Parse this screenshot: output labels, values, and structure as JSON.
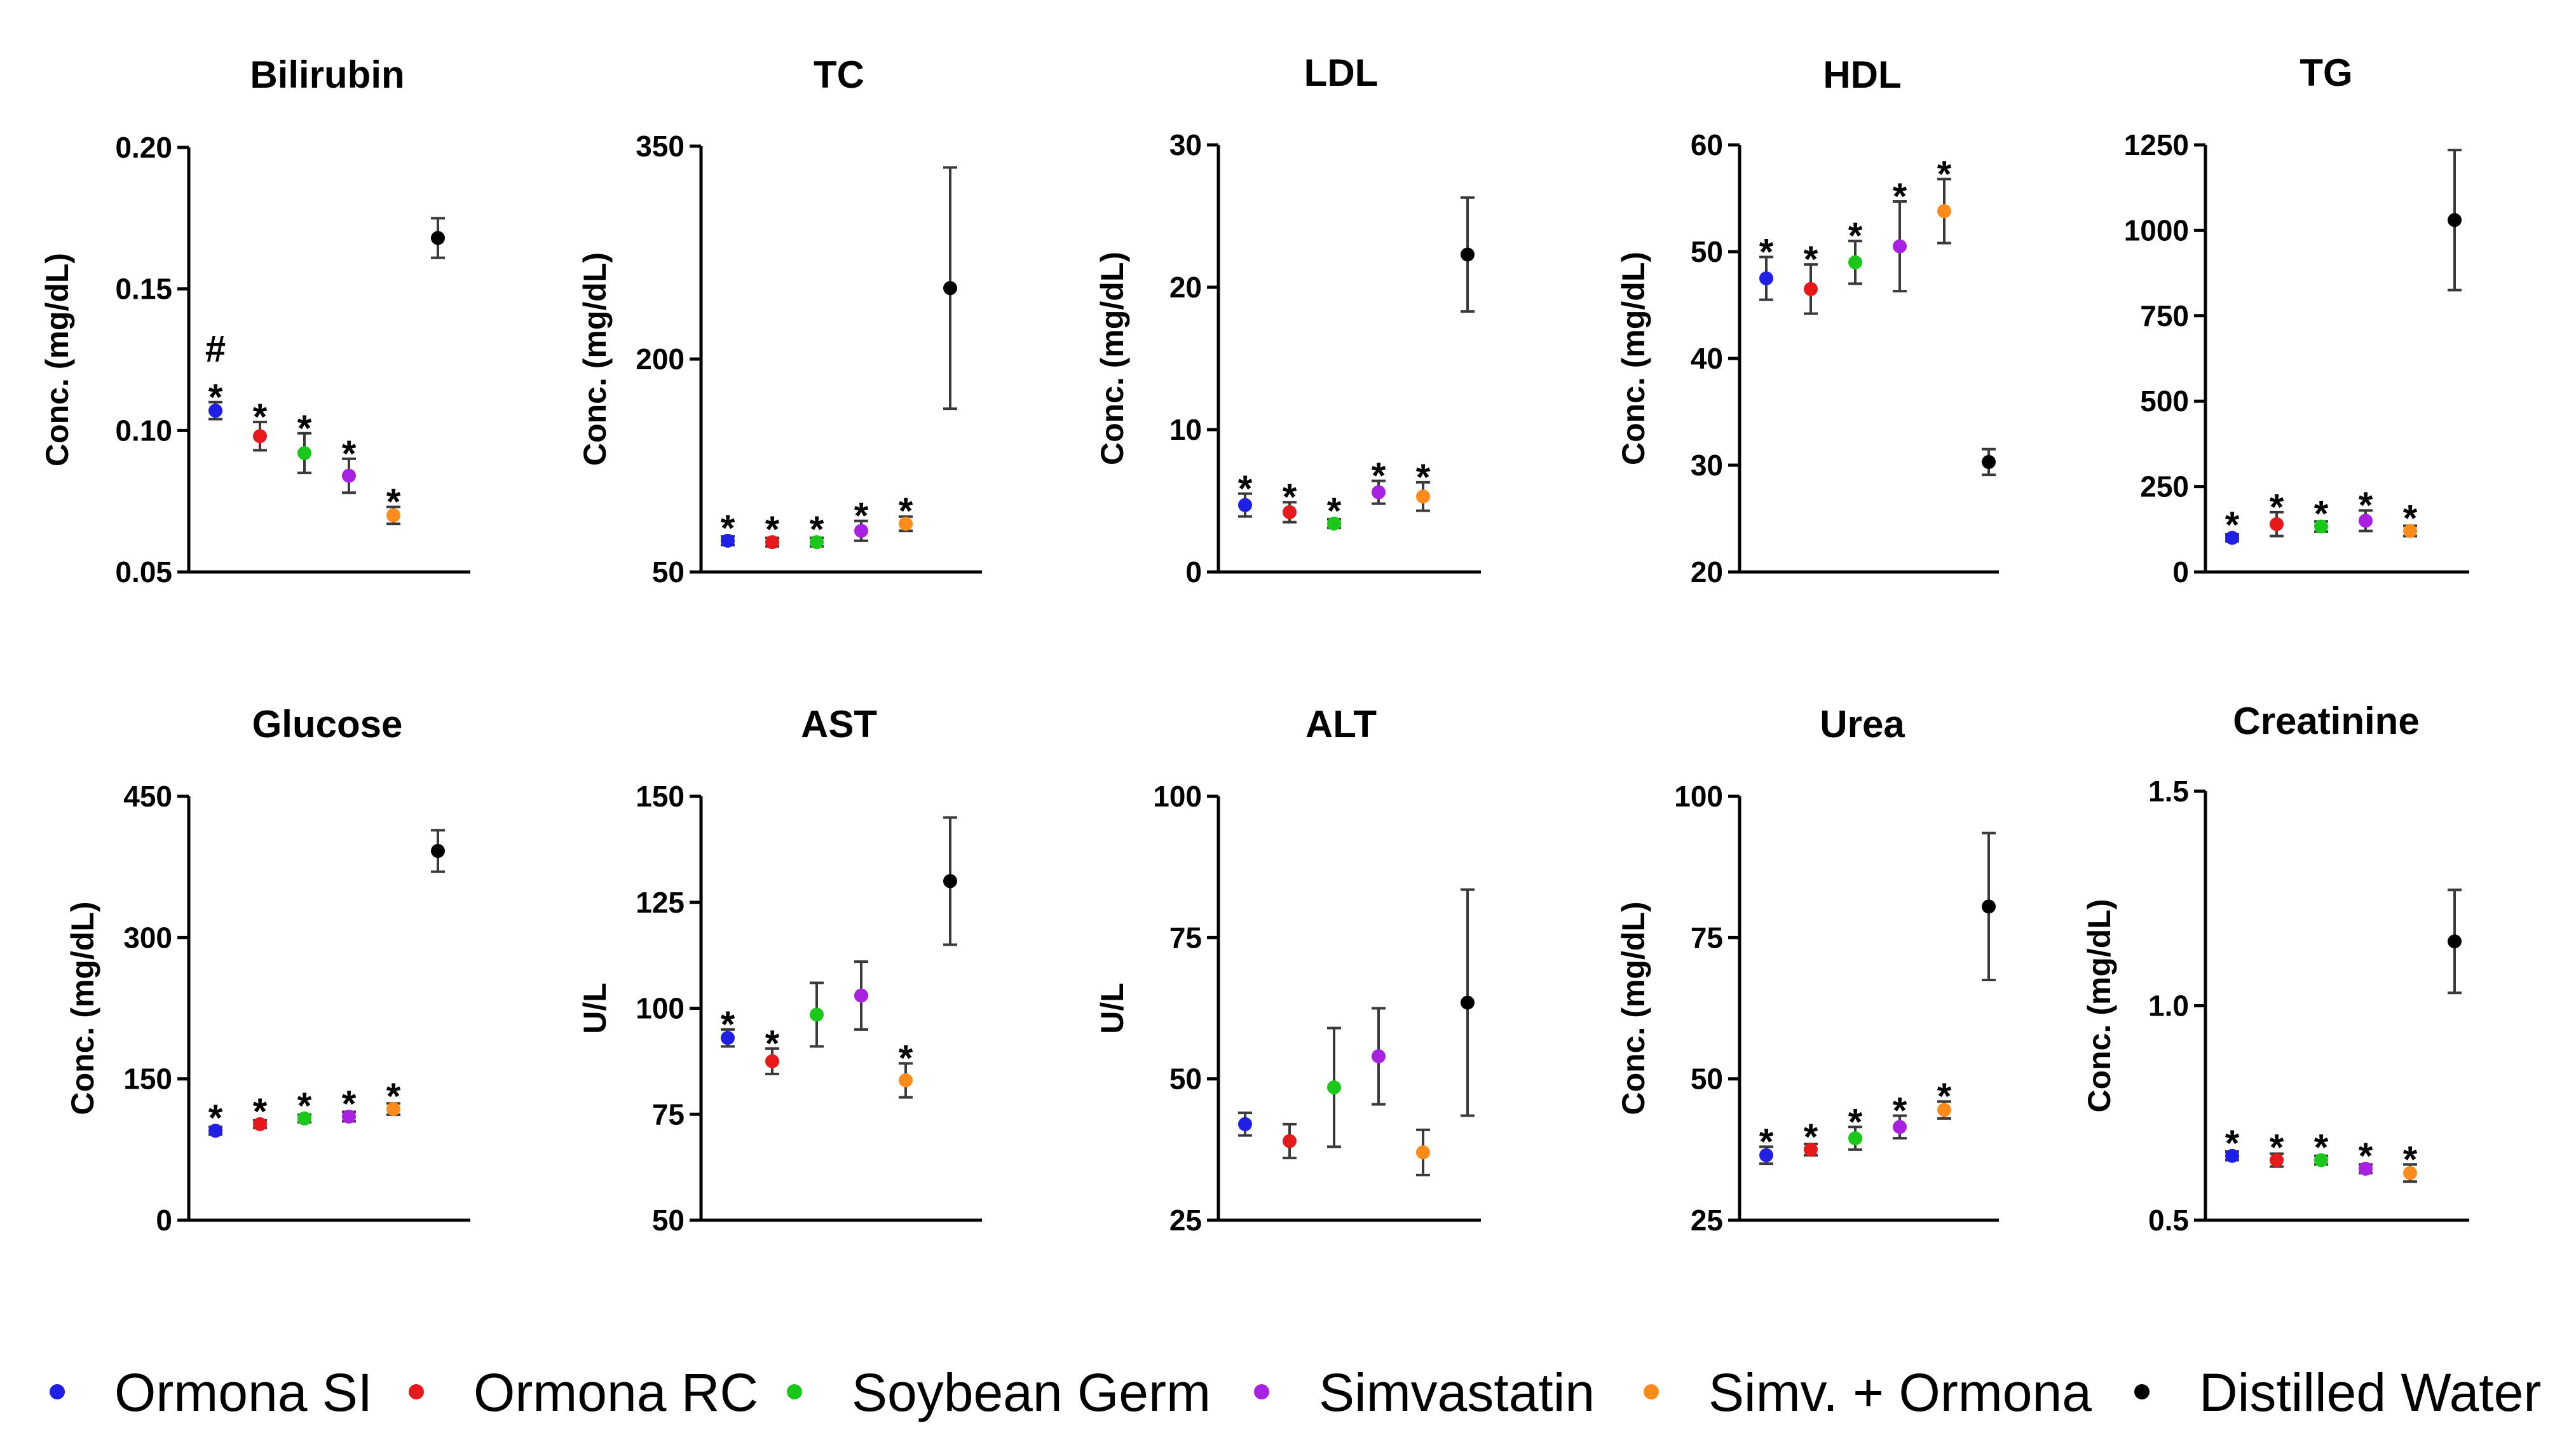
{
  "chart_data": [
    {
      "type": "scatter",
      "title": "Bilirubin",
      "ylabel": "Conc. (mg/dL)",
      "ylim": [
        0.05,
        0.2
      ],
      "ticks": [
        "0.05",
        "0.10",
        "0.15",
        "0.20"
      ],
      "tick_values": [
        0.05,
        0.1,
        0.15,
        0.2
      ],
      "points": [
        {
          "group": "Ormona SI",
          "value": 0.107,
          "error": 0.003,
          "marks": [
            "*",
            "#"
          ]
        },
        {
          "group": "Ormona RC",
          "value": 0.098,
          "error": 0.005,
          "marks": [
            "*"
          ]
        },
        {
          "group": "Soybean Germ",
          "value": 0.092,
          "error": 0.007,
          "marks": [
            "*"
          ]
        },
        {
          "group": "Simvastatin",
          "value": 0.084,
          "error": 0.006,
          "marks": [
            "*"
          ]
        },
        {
          "group": "Simv. + Ormona",
          "value": 0.07,
          "error": 0.003,
          "marks": [
            "*"
          ]
        },
        {
          "group": "Distilled Water",
          "value": 0.168,
          "error": 0.007,
          "marks": []
        }
      ]
    },
    {
      "type": "scatter",
      "title": "TC",
      "ylabel": "Conc. (mg/dL)",
      "ylim": [
        50,
        350
      ],
      "ticks": [
        "50",
        "200",
        "350"
      ],
      "tick_values": [
        50,
        200,
        350
      ],
      "points": [
        {
          "group": "Ormona SI",
          "value": 72,
          "error": 3,
          "marks": [
            "*"
          ]
        },
        {
          "group": "Ormona RC",
          "value": 71,
          "error": 3,
          "marks": [
            "*"
          ]
        },
        {
          "group": "Soybean Germ",
          "value": 71,
          "error": 3,
          "marks": [
            "*"
          ]
        },
        {
          "group": "Simvastatin",
          "value": 79,
          "error": 7,
          "marks": [
            "*"
          ]
        },
        {
          "group": "Simv. + Ormona",
          "value": 84,
          "error": 5,
          "marks": [
            "*"
          ]
        },
        {
          "group": "Distilled Water",
          "value": 250,
          "error": 85,
          "marks": []
        }
      ]
    },
    {
      "type": "scatter",
      "title": "LDL",
      "ylabel": "Conc. (mg/dL)",
      "ylim": [
        0,
        30
      ],
      "ticks": [
        "0",
        "10",
        "20",
        "30"
      ],
      "tick_values": [
        0,
        10,
        20,
        30
      ],
      "points": [
        {
          "group": "Ormona SI",
          "value": 4.7,
          "error": 0.8,
          "marks": [
            "*"
          ]
        },
        {
          "group": "Ormona RC",
          "value": 4.2,
          "error": 0.7,
          "marks": [
            "*"
          ]
        },
        {
          "group": "Soybean Germ",
          "value": 3.4,
          "error": 0.3,
          "marks": [
            "*"
          ]
        },
        {
          "group": "Simvastatin",
          "value": 5.6,
          "error": 0.8,
          "marks": [
            "*"
          ]
        },
        {
          "group": "Simv. + Ormona",
          "value": 5.3,
          "error": 1.0,
          "marks": [
            "*"
          ]
        },
        {
          "group": "Distilled Water",
          "value": 22.3,
          "error": 4.0,
          "marks": []
        }
      ]
    },
    {
      "type": "scatter",
      "title": "HDL",
      "ylabel": "Conc. (mg/dL)",
      "ylim": [
        20,
        60
      ],
      "ticks": [
        "20",
        "30",
        "40",
        "50",
        "60"
      ],
      "tick_values": [
        20,
        30,
        40,
        50,
        60
      ],
      "points": [
        {
          "group": "Ormona SI",
          "value": 47.5,
          "error": 2.0,
          "marks": [
            "*"
          ]
        },
        {
          "group": "Ormona RC",
          "value": 46.5,
          "error": 2.3,
          "marks": [
            "*"
          ]
        },
        {
          "group": "Soybean Germ",
          "value": 49,
          "error": 2.0,
          "marks": [
            "*"
          ]
        },
        {
          "group": "Simvastatin",
          "value": 50.5,
          "error": 4.2,
          "marks": [
            "*"
          ]
        },
        {
          "group": "Simv. + Ormona",
          "value": 53.8,
          "error": 3.0,
          "marks": [
            "*"
          ]
        },
        {
          "group": "Distilled Water",
          "value": 30.3,
          "error": 1.2,
          "marks": []
        }
      ]
    },
    {
      "type": "scatter",
      "title": "TG",
      "ylabel": "",
      "ylim": [
        0,
        1250
      ],
      "ticks": [
        "0",
        "250",
        "500",
        "750",
        "1000",
        "1250"
      ],
      "tick_values": [
        0,
        250,
        500,
        750,
        1000,
        1250
      ],
      "points": [
        {
          "group": "Ormona SI",
          "value": 100,
          "error": 10,
          "marks": [
            "*"
          ]
        },
        {
          "group": "Ormona RC",
          "value": 140,
          "error": 35,
          "marks": [
            "*"
          ]
        },
        {
          "group": "Soybean Germ",
          "value": 133,
          "error": 15,
          "marks": [
            "*"
          ]
        },
        {
          "group": "Simvastatin",
          "value": 150,
          "error": 30,
          "marks": [
            "*"
          ]
        },
        {
          "group": "Simv. + Ormona",
          "value": 120,
          "error": 15,
          "marks": [
            "*"
          ]
        },
        {
          "group": "Distilled Water",
          "value": 1030,
          "error": 205,
          "marks": []
        }
      ]
    },
    {
      "type": "scatter",
      "title": "Glucose",
      "ylabel": "Conc. (mg/dL)",
      "ylim": [
        0,
        450
      ],
      "ticks": [
        "0",
        "150",
        "300",
        "450"
      ],
      "tick_values": [
        0,
        150,
        300,
        450
      ],
      "points": [
        {
          "group": "Ormona SI",
          "value": 95,
          "error": 4,
          "marks": [
            "*"
          ]
        },
        {
          "group": "Ormona RC",
          "value": 102,
          "error": 4,
          "marks": [
            "*"
          ]
        },
        {
          "group": "Soybean Germ",
          "value": 108,
          "error": 4,
          "marks": [
            "*"
          ]
        },
        {
          "group": "Simvastatin",
          "value": 110,
          "error": 5,
          "marks": [
            "*"
          ]
        },
        {
          "group": "Simv. + Ormona",
          "value": 118,
          "error": 6,
          "marks": [
            "*"
          ]
        },
        {
          "group": "Distilled Water",
          "value": 392,
          "error": 22,
          "marks": []
        }
      ]
    },
    {
      "type": "scatter",
      "title": "AST",
      "ylabel": "U/L",
      "ylim": [
        50,
        150
      ],
      "ticks": [
        "50",
        "75",
        "100",
        "125",
        "150"
      ],
      "tick_values": [
        50,
        75,
        100,
        125,
        150
      ],
      "points": [
        {
          "group": "Ormona SI",
          "value": 93,
          "error": 2,
          "marks": [
            "*"
          ]
        },
        {
          "group": "Ormona RC",
          "value": 87.5,
          "error": 3,
          "marks": [
            "*"
          ]
        },
        {
          "group": "Soybean Germ",
          "value": 98.5,
          "error": 7.5,
          "marks": []
        },
        {
          "group": "Simvastatin",
          "value": 103,
          "error": 8,
          "marks": []
        },
        {
          "group": "Simv. + Ormona",
          "value": 83,
          "error": 4,
          "marks": [
            "*"
          ]
        },
        {
          "group": "Distilled Water",
          "value": 130,
          "error": 15,
          "marks": []
        }
      ]
    },
    {
      "type": "scatter",
      "title": "ALT",
      "ylabel": "U/L",
      "ylim": [
        25,
        100
      ],
      "ticks": [
        "25",
        "50",
        "75",
        "100"
      ],
      "tick_values": [
        25,
        50,
        75,
        100
      ],
      "points": [
        {
          "group": "Ormona SI",
          "value": 42,
          "error": 2,
          "marks": []
        },
        {
          "group": "Ormona RC",
          "value": 39,
          "error": 3,
          "marks": []
        },
        {
          "group": "Soybean Germ",
          "value": 48.5,
          "error": 10.5,
          "marks": []
        },
        {
          "group": "Simvastatin",
          "value": 54,
          "error": 8.5,
          "marks": []
        },
        {
          "group": "Simv. + Ormona",
          "value": 37,
          "error": 4,
          "marks": []
        },
        {
          "group": "Distilled Water",
          "value": 63.5,
          "error": 20,
          "marks": []
        }
      ]
    },
    {
      "type": "scatter",
      "title": "Urea",
      "ylabel": "Conc. (mg/dL)",
      "ylim": [
        25,
        100
      ],
      "ticks": [
        "25",
        "50",
        "75",
        "100"
      ],
      "tick_values": [
        25,
        50,
        75,
        100
      ],
      "points": [
        {
          "group": "Ormona SI",
          "value": 36.5,
          "error": 1.5,
          "marks": [
            "*"
          ]
        },
        {
          "group": "Ormona RC",
          "value": 37.5,
          "error": 1,
          "marks": [
            "*"
          ]
        },
        {
          "group": "Soybean Germ",
          "value": 39.5,
          "error": 2,
          "marks": [
            "*"
          ]
        },
        {
          "group": "Simvastatin",
          "value": 41.5,
          "error": 2,
          "marks": [
            "*"
          ]
        },
        {
          "group": "Simv. + Ormona",
          "value": 44.5,
          "error": 1.5,
          "marks": [
            "*"
          ]
        },
        {
          "group": "Distilled Water",
          "value": 80.5,
          "error": 13,
          "marks": []
        }
      ]
    },
    {
      "type": "scatter",
      "title": "Creatinine",
      "ylabel": "Conc. (mg/dL)",
      "ylim": [
        0.5,
        1.5
      ],
      "ticks": [
        "0.5",
        "1.0",
        "1.5"
      ],
      "tick_values": [
        0.5,
        1.0,
        1.5
      ],
      "points": [
        {
          "group": "Ormona SI",
          "value": 0.65,
          "error": 0.01,
          "marks": [
            "*"
          ]
        },
        {
          "group": "Ormona RC",
          "value": 0.64,
          "error": 0.015,
          "marks": [
            "*"
          ]
        },
        {
          "group": "Soybean Germ",
          "value": 0.64,
          "error": 0.01,
          "marks": [
            "*"
          ]
        },
        {
          "group": "Simvastatin",
          "value": 0.62,
          "error": 0.01,
          "marks": [
            "*"
          ]
        },
        {
          "group": "Simv. + Ormona",
          "value": 0.61,
          "error": 0.02,
          "marks": [
            "*"
          ]
        },
        {
          "group": "Distilled Water",
          "value": 1.15,
          "error": 0.12,
          "marks": []
        }
      ]
    }
  ],
  "legend": [
    {
      "label": "Ormona SI",
      "color": "#1f1fe6"
    },
    {
      "label": "Ormona RC",
      "color": "#e61a1a"
    },
    {
      "label": "Soybean Germ",
      "color": "#19c819"
    },
    {
      "label": "Simvastatin",
      "color": "#a821e0"
    },
    {
      "label": "Simv. + Ormona",
      "color": "#ff8c1a"
    },
    {
      "label": "Distilled Water",
      "color": "#000000"
    }
  ]
}
